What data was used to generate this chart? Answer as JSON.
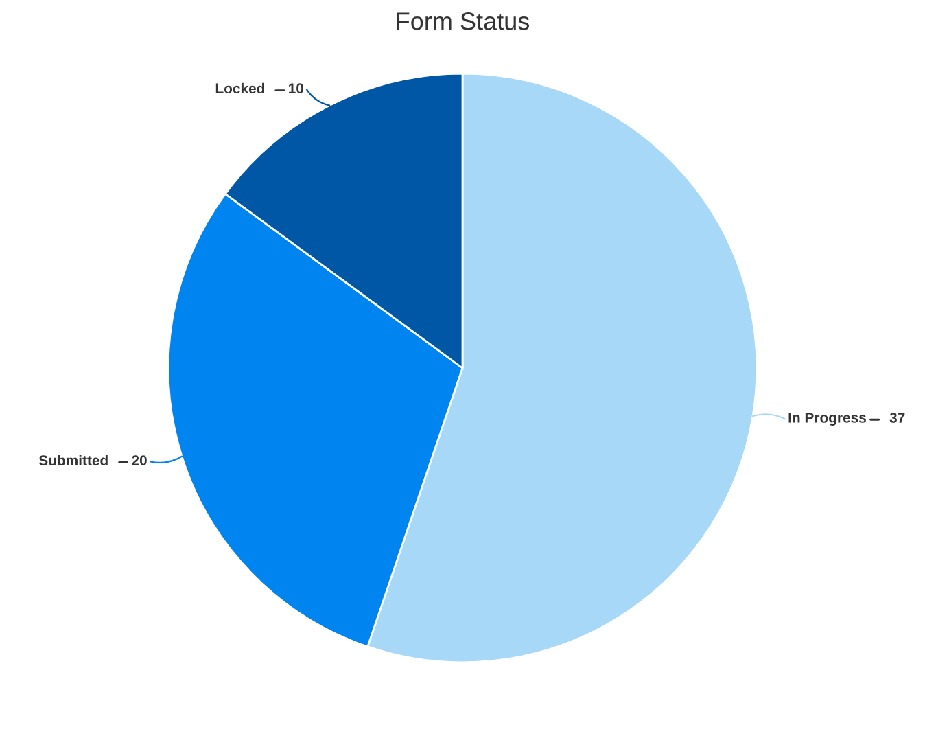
{
  "chart_data": {
    "type": "pie",
    "title": "Form Status",
    "categories": [
      "In Progress",
      "Submitted",
      "Locked"
    ],
    "values": [
      37,
      20,
      10
    ],
    "colors": [
      "#a8d8f8",
      "#0084f0",
      "#0057a6"
    ],
    "data_labels": true,
    "legend": false
  }
}
